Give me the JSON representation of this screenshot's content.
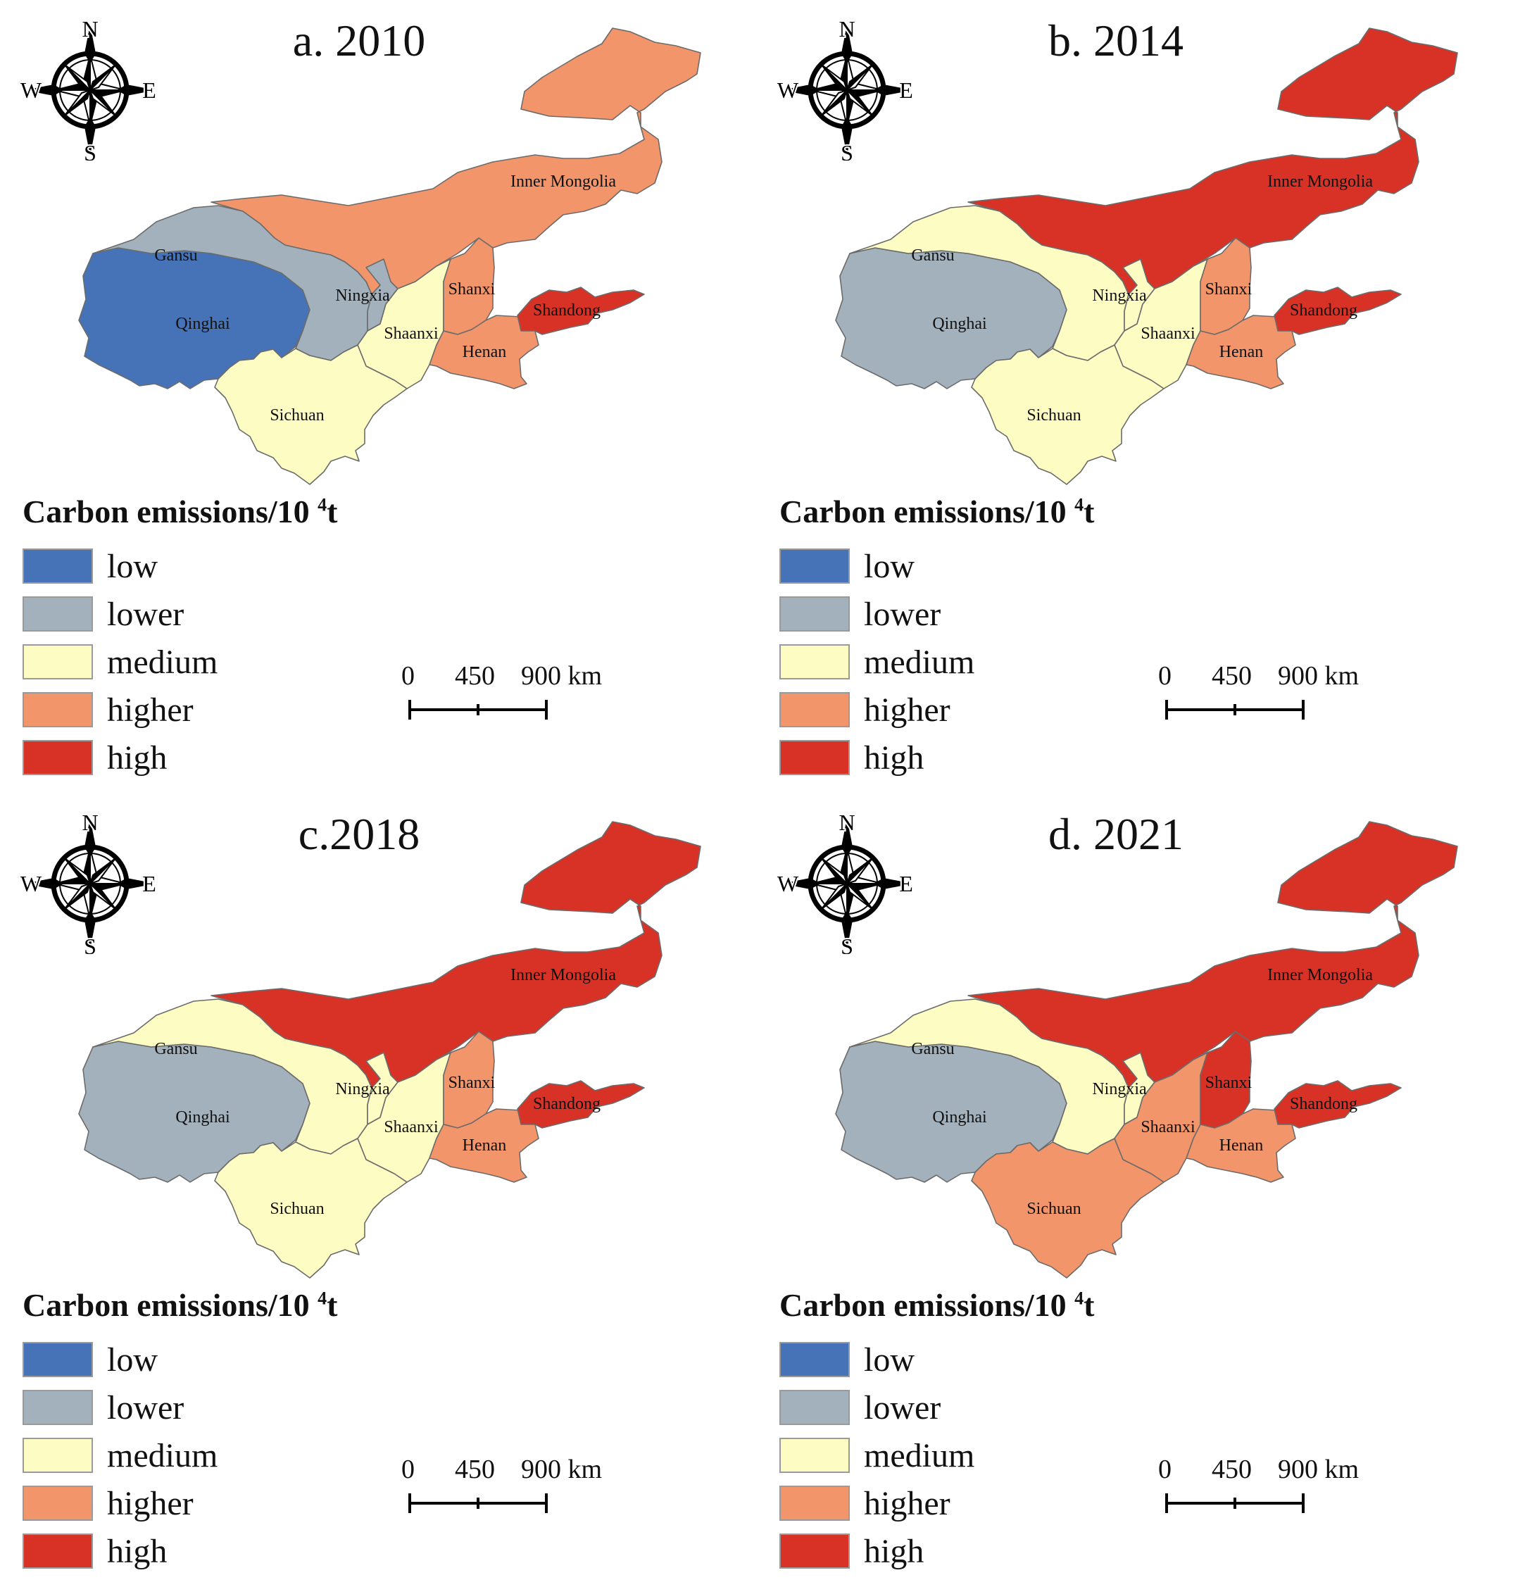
{
  "legend": {
    "title": "Carbon emissions/10 ",
    "exponent": "4",
    "unit": "t",
    "classes": [
      {
        "key": "low",
        "label": "low",
        "color": "#4673b8"
      },
      {
        "key": "lower",
        "label": "lower",
        "color": "#a3b1bc"
      },
      {
        "key": "medium",
        "label": "medium",
        "color": "#fdfcc3"
      },
      {
        "key": "higher",
        "label": "higher",
        "color": "#f2956a"
      },
      {
        "key": "high",
        "label": "high",
        "color": "#d83227"
      }
    ]
  },
  "scale_bar": {
    "t0": "0",
    "t1": "450",
    "t2": "900 km"
  },
  "compass": {
    "n": "N",
    "s": "S",
    "e": "E",
    "w": "W"
  },
  "province_names": {
    "inner_mongolia": "Inner Mongolia",
    "gansu": "Gansu",
    "qinghai": "Qinghai",
    "ningxia": "Ningxia",
    "shaanxi": "Shaanxi",
    "shanxi": "Shanxi",
    "shandong": "Shandong",
    "henan": "Henan",
    "sichuan": "Sichuan"
  },
  "panels": [
    {
      "title": "a. 2010",
      "classes": {
        "inner_mongolia": "higher",
        "gansu": "lower",
        "qinghai": "low",
        "ningxia": "lower",
        "shaanxi": "medium",
        "shanxi": "higher",
        "shandong": "high",
        "henan": "higher",
        "sichuan": "medium"
      }
    },
    {
      "title": "b. 2014",
      "classes": {
        "inner_mongolia": "high",
        "gansu": "medium",
        "qinghai": "lower",
        "ningxia": "medium",
        "shaanxi": "medium",
        "shanxi": "higher",
        "shandong": "high",
        "henan": "higher",
        "sichuan": "medium"
      }
    },
    {
      "title": "c.2018",
      "classes": {
        "inner_mongolia": "high",
        "gansu": "medium",
        "qinghai": "lower",
        "ningxia": "medium",
        "shaanxi": "medium",
        "shanxi": "higher",
        "shandong": "high",
        "henan": "higher",
        "sichuan": "medium"
      }
    },
    {
      "title": "d. 2021",
      "classes": {
        "inner_mongolia": "high",
        "gansu": "medium",
        "qinghai": "lower",
        "ningxia": "medium",
        "shaanxi": "higher",
        "shanxi": "high",
        "shandong": "high",
        "henan": "higher",
        "sichuan": "higher"
      }
    }
  ]
}
